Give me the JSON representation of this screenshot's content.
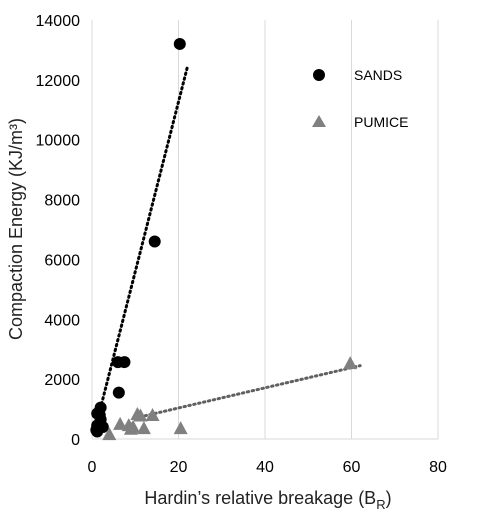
{
  "chart_data": {
    "type": "scatter",
    "xlabel": "Hardin’s relative breakage (B",
    "xlabel_subscript": "R",
    "xlabel_suffix": ")",
    "ylabel": "Compaction Energy (KJ/m³)",
    "xlim": [
      0,
      80
    ],
    "ylim": [
      0,
      14000
    ],
    "x_ticks": [
      0,
      20,
      40,
      60,
      80
    ],
    "y_ticks": [
      0,
      2000,
      4000,
      6000,
      8000,
      10000,
      12000,
      14000
    ],
    "grid": "vertical",
    "legend_position": "top-right",
    "series": [
      {
        "name": "SANDS",
        "marker": "circle",
        "color": "#000000",
        "points": [
          {
            "x": 20.3,
            "y": 13200
          },
          {
            "x": 14.5,
            "y": 6600
          },
          {
            "x": 6.0,
            "y": 2570
          },
          {
            "x": 7.5,
            "y": 2570
          },
          {
            "x": 6.2,
            "y": 1550
          },
          {
            "x": 2.0,
            "y": 1050
          },
          {
            "x": 1.2,
            "y": 850
          },
          {
            "x": 1.8,
            "y": 800
          },
          {
            "x": 2.0,
            "y": 650
          },
          {
            "x": 1.2,
            "y": 450
          },
          {
            "x": 1.5,
            "y": 400
          },
          {
            "x": 2.5,
            "y": 400
          },
          {
            "x": 1.0,
            "y": 300
          },
          {
            "x": 1.2,
            "y": 250
          }
        ],
        "trendline": {
          "x": [
            0.5,
            22
          ],
          "y": [
            200,
            12400
          ]
        }
      },
      {
        "name": "PUMICE",
        "marker": "triangle",
        "color": "#808080",
        "points": [
          {
            "x": 59.7,
            "y": 2550
          },
          {
            "x": 10.5,
            "y": 850
          },
          {
            "x": 11.2,
            "y": 800
          },
          {
            "x": 14.0,
            "y": 820
          },
          {
            "x": 6.5,
            "y": 520
          },
          {
            "x": 8.5,
            "y": 480
          },
          {
            "x": 9.5,
            "y": 420
          },
          {
            "x": 12.0,
            "y": 380
          },
          {
            "x": 9.0,
            "y": 360
          },
          {
            "x": 20.5,
            "y": 380
          },
          {
            "x": 4.0,
            "y": 180
          }
        ],
        "trendline": {
          "x": [
            10,
            62
          ],
          "y": [
            700,
            2450
          ]
        }
      }
    ]
  }
}
